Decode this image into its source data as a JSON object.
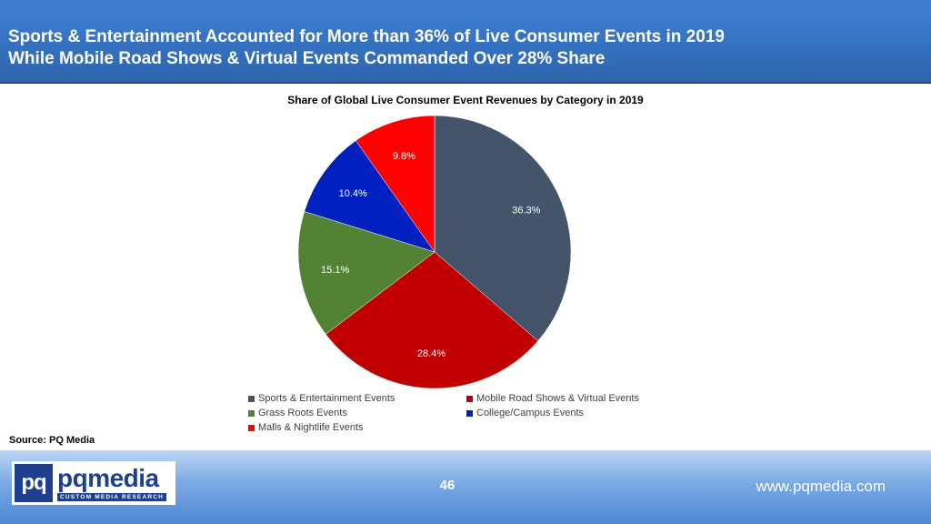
{
  "header": {
    "line1": "Sports & Entertainment Accounted for More than 36% of Live Consumer Events in 2019",
    "line2": "While Mobile Road Shows & Virtual Events Commanded Over 28% Share"
  },
  "chart_data": {
    "type": "pie",
    "title": "Share of Global Live Consumer Event  Revenues by Category in 2019",
    "unit": "%",
    "legend_position": "bottom",
    "slices": [
      {
        "name": "Sports & Entertainment Events",
        "value": 36.3,
        "label": "36.3%",
        "color": "#44546a"
      },
      {
        "name": "Mobile Road Shows & Virtual Events",
        "value": 28.4,
        "label": "28.4%",
        "color": "#c00000"
      },
      {
        "name": "Grass Roots Events",
        "value": 15.1,
        "label": "15.1%",
        "color": "#548235"
      },
      {
        "name": "College/Campus Events",
        "value": 10.4,
        "label": "10.4%",
        "color": "#0020c0"
      },
      {
        "name": "Malls & Nightlife Events",
        "value": 9.8,
        "label": "9.8%",
        "color": "#ff0000"
      }
    ]
  },
  "source": "Source: PQ Media",
  "footer": {
    "logo_mark": "pq",
    "logo_name": "pqmedia",
    "logo_tagline": "CUSTOM MEDIA RESEARCH",
    "page_number": "46",
    "website": "www.pqmedia.com"
  }
}
